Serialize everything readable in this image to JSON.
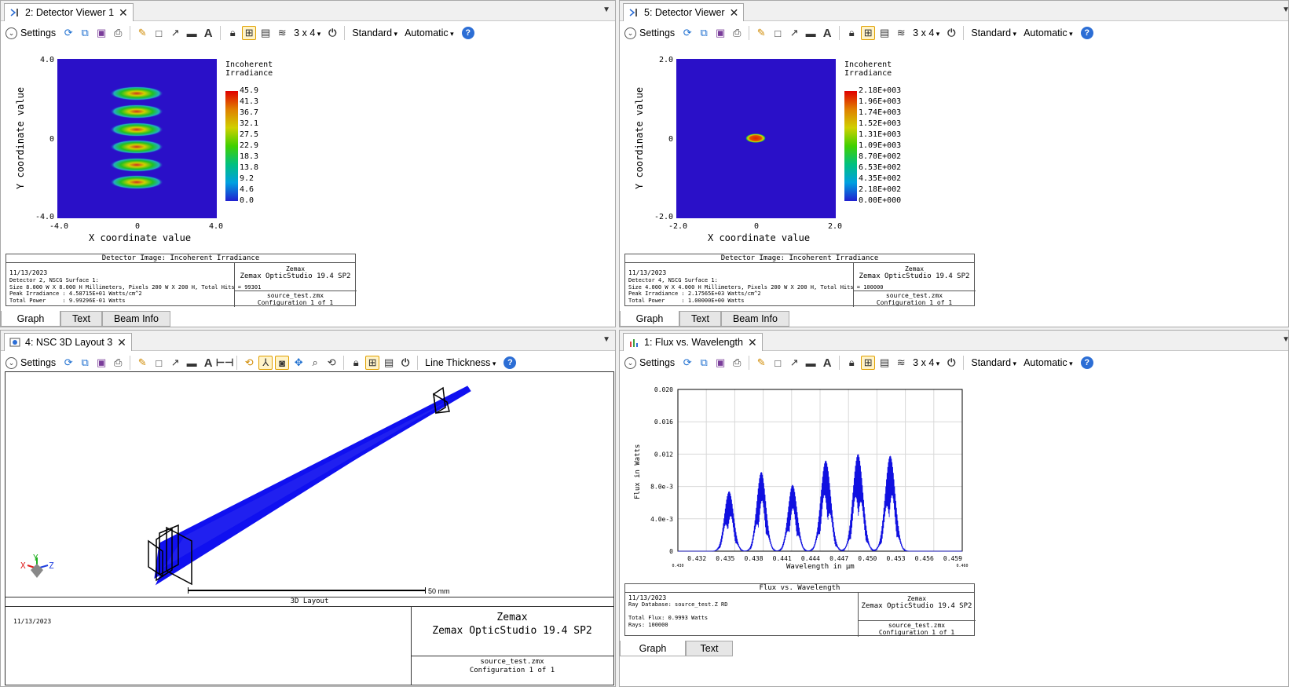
{
  "common": {
    "settings_label": "Settings",
    "layout_value": "3 x 4",
    "standard_label": "Standard",
    "automatic_label": "Automatic",
    "help_glyph": "?"
  },
  "pane1": {
    "tab_title": "2: Detector Viewer 1",
    "legend_title_1": "Incoherent",
    "legend_title_2": "Irradiance",
    "legend_values": [
      "45.9",
      "41.3",
      "36.7",
      "32.1",
      "27.5",
      "22.9",
      "18.3",
      "13.8",
      "9.2",
      "4.6",
      "0.0"
    ],
    "y_ticks": [
      "4.0",
      "0",
      "-4.0"
    ],
    "x_ticks": [
      "-4.0",
      "0",
      "4.0"
    ],
    "xlabel": "X coordinate value",
    "ylabel": "Y coordinate value",
    "footer_title": "Detector Image: Incoherent Irradiance",
    "footer_date": "11/13/2023",
    "footer_lines": [
      "Detector 2, NSCG Surface 1:",
      "Size 8.000 W X 8.000 H Millimeters, Pixels 200 W X 200 H, Total Hits = 99301",
      "Peak Irradiance : 4.58715E+01 Watts/cm^2",
      "Total Power     : 9.99296E-01 Watts"
    ],
    "footer_brand_1": "Zemax",
    "footer_brand_2": "Zemax OpticStudio 19.4 SP2",
    "footer_file": "source_test.zmx",
    "footer_config": "Configuration 1 of 1",
    "bottom_tabs": [
      "Graph",
      "Text",
      "Beam Info"
    ]
  },
  "pane2": {
    "tab_title": "5: Detector Viewer",
    "legend_title_1": "Incoherent",
    "legend_title_2": "Irradiance",
    "legend_values": [
      "2.18E+003",
      "1.96E+003",
      "1.74E+003",
      "1.52E+003",
      "1.31E+003",
      "1.09E+003",
      "8.70E+002",
      "6.53E+002",
      "4.35E+002",
      "2.18E+002",
      "0.00E+000"
    ],
    "y_ticks": [
      "2.0",
      "0",
      "-2.0"
    ],
    "x_ticks": [
      "-2.0",
      "0",
      "2.0"
    ],
    "xlabel": "X coordinate value",
    "ylabel": "Y coordinate value",
    "footer_title": "Detector Image: Incoherent Irradiance",
    "footer_date": "11/13/2023",
    "footer_lines": [
      "Detector 4, NSCG Surface 1:",
      "Size 4.000 W X 4.000 H Millimeters, Pixels 200 W X 200 H, Total Hits = 100000",
      "Peak Irradiance : 2.17565E+03 Watts/cm^2",
      "Total Power     : 1.00000E+00 Watts"
    ],
    "footer_brand_1": "Zemax",
    "footer_brand_2": "Zemax OpticStudio 19.4 SP2",
    "footer_file": "source_test.zmx",
    "footer_config": "Configuration 1 of 1",
    "bottom_tabs": [
      "Graph",
      "Text",
      "Beam Info"
    ]
  },
  "pane3": {
    "tab_title": "4: NSC 3D Layout 3",
    "line_thickness_label": "Line Thickness",
    "scale_label": "50 mm",
    "axis_x": "X",
    "axis_y": "Y",
    "axis_z": "Z",
    "footer_title": "3D Layout",
    "footer_date": "11/13/2023",
    "footer_brand_1": "Zemax",
    "footer_brand_2": "Zemax OpticStudio 19.4 SP2",
    "footer_file": "source_test.zmx",
    "footer_config": "Configuration 1 of 1"
  },
  "pane4": {
    "tab_title": "1: Flux vs. Wavelength",
    "footer_title": "Flux vs. Wavelength",
    "footer_date": "11/13/2023",
    "footer_lines": [
      "Ray Database: source_test.Z RD",
      "",
      "Total Flux: 0.9993 Watts",
      "Rays: 100000"
    ],
    "footer_brand_1": "Zemax",
    "footer_brand_2": "Zemax OpticStudio 19.4 SP2",
    "footer_file": "source_test.zmx",
    "footer_config": "Configuration 1 of 1",
    "bottom_tabs": [
      "Graph",
      "Text"
    ]
  },
  "chart_data": {
    "type": "line",
    "title": "",
    "xlabel": "Wavelength in µm",
    "ylabel": "Flux in Watts",
    "xlim": [
      0.43,
      0.46
    ],
    "ylim": [
      0,
      0.02
    ],
    "x_min_label": "0.430",
    "x_max_label": "0.460",
    "x_ticks": [
      "0.432",
      "0.435",
      "0.438",
      "0.441",
      "0.444",
      "0.447",
      "0.450",
      "0.453",
      "0.456",
      "0.459"
    ],
    "y_ticks": [
      "0",
      "4.0e-3",
      "8.0e-3",
      "0.012",
      "0.016",
      "0.020"
    ],
    "grid": true,
    "series": [
      {
        "peaks": [
          {
            "center": 0.4354,
            "height": 0.0074,
            "width": 0.0011
          },
          {
            "center": 0.4388,
            "height": 0.0098,
            "width": 0.0011
          },
          {
            "center": 0.4421,
            "height": 0.0082,
            "width": 0.0011
          },
          {
            "center": 0.4456,
            "height": 0.0112,
            "width": 0.0012
          },
          {
            "center": 0.449,
            "height": 0.012,
            "width": 0.0012
          },
          {
            "center": 0.4524,
            "height": 0.0118,
            "width": 0.0012
          }
        ]
      }
    ]
  }
}
